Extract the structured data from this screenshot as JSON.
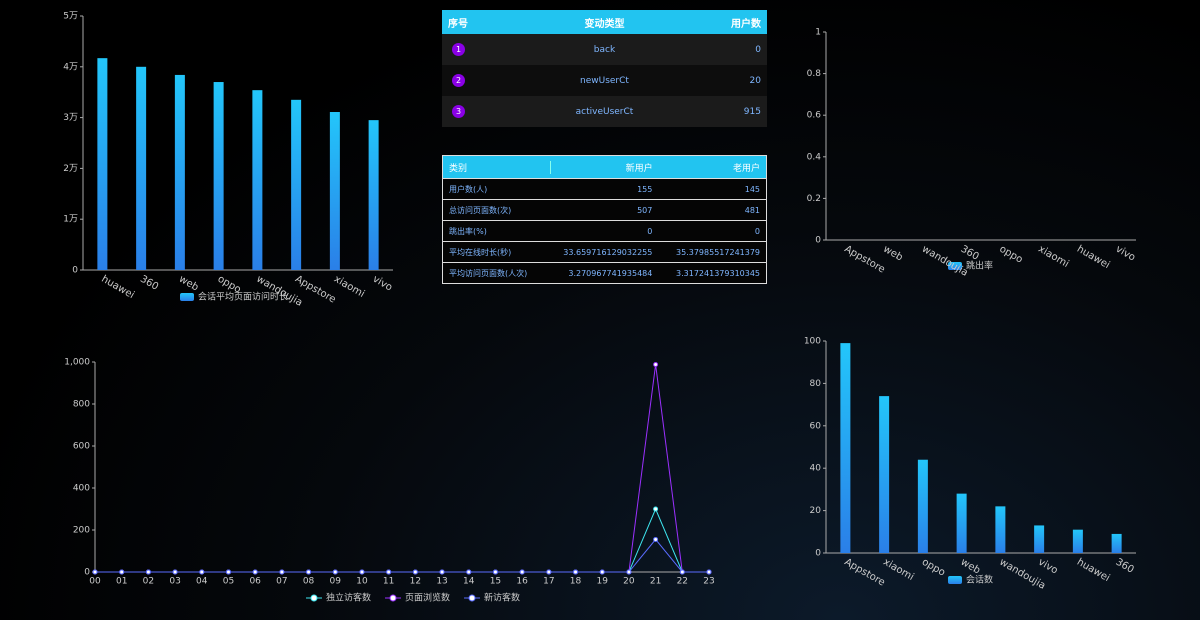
{
  "chart_data": [
    {
      "type": "bar",
      "categories": [
        "huawei",
        "360",
        "web",
        "oppo",
        "wandoujia",
        "Appstore",
        "xiaomi",
        "vivo"
      ],
      "series": [
        {
          "name": "会话平均页面访问时长",
          "color": [
            "#23c6fa",
            "#2a7fe8"
          ],
          "values": [
            41700,
            40000,
            38400,
            37000,
            35400,
            33500,
            31100,
            29500
          ]
        }
      ],
      "ylim": [
        0,
        50000
      ],
      "yticks": [
        0,
        {
          "value": 10000,
          "label": "1万"
        },
        {
          "value": 20000,
          "label": "2万"
        },
        {
          "value": 30000,
          "label": "3万"
        },
        {
          "value": 40000,
          "label": "4万"
        },
        {
          "value": 50000,
          "label": "5万"
        }
      ]
    },
    {
      "type": "bar",
      "categories": [
        "Appstore",
        "web",
        "wandoujia",
        "360",
        "oppo",
        "xiaomi",
        "huawei",
        "vivo"
      ],
      "series": [
        {
          "name": "跳出率",
          "color": [
            "#23c6fa",
            "#2a7fe8"
          ],
          "values": [
            0,
            0,
            0,
            0,
            0,
            0,
            0,
            0
          ]
        }
      ],
      "ylim": [
        0,
        1
      ],
      "yticks": [
        0,
        0.2,
        0.4,
        0.6,
        0.8,
        1
      ]
    },
    {
      "type": "bar",
      "categories": [
        "Appstore",
        "xiaomi",
        "oppo",
        "web",
        "wandoujia",
        "vivo",
        "huawei",
        "360"
      ],
      "series": [
        {
          "name": "会话数",
          "color": [
            "#23c6fa",
            "#2a7fe8"
          ],
          "values": [
            99,
            74,
            44,
            28,
            22,
            13,
            11,
            9
          ]
        }
      ],
      "ylim": [
        0,
        100
      ],
      "yticks": [
        0,
        20,
        40,
        60,
        80,
        100
      ]
    },
    {
      "type": "line",
      "categories": [
        "00",
        "01",
        "02",
        "03",
        "04",
        "05",
        "06",
        "07",
        "08",
        "09",
        "10",
        "11",
        "12",
        "13",
        "14",
        "15",
        "16",
        "17",
        "18",
        "19",
        "20",
        "21",
        "22",
        "23"
      ],
      "series": [
        {
          "name": "独立访客数",
          "color": "#3ee6f0",
          "values": [
            0,
            0,
            0,
            0,
            0,
            0,
            0,
            0,
            0,
            0,
            0,
            0,
            0,
            0,
            0,
            0,
            0,
            0,
            0,
            0,
            0,
            300,
            0,
            0
          ]
        },
        {
          "name": "页面浏览数",
          "color": "#9b30ff",
          "values": [
            0,
            0,
            0,
            0,
            0,
            0,
            0,
            0,
            0,
            0,
            0,
            0,
            0,
            0,
            0,
            0,
            0,
            0,
            0,
            0,
            0,
            988,
            0,
            0
          ]
        },
        {
          "name": "新访客数",
          "color": "#5a6cff",
          "values": [
            0,
            0,
            0,
            0,
            0,
            0,
            0,
            0,
            0,
            0,
            0,
            0,
            0,
            0,
            0,
            0,
            0,
            0,
            0,
            0,
            0,
            155,
            0,
            0
          ]
        }
      ],
      "ylim": [
        0,
        1000
      ],
      "yticks": [
        0,
        200,
        400,
        600,
        800,
        {
          "value": 1000,
          "label": "1,000"
        }
      ]
    }
  ],
  "change_table": {
    "header": [
      "序号",
      "变动类型",
      "用户数"
    ],
    "rows": [
      [
        "1",
        "back",
        "0"
      ],
      [
        "2",
        "newUserCt",
        "20"
      ],
      [
        "3",
        "activeUserCt",
        "915"
      ]
    ]
  },
  "user_table": {
    "header": [
      "类别",
      "新用户",
      "老用户"
    ],
    "rows": [
      [
        "用户数(人)",
        "155",
        "145"
      ],
      [
        "总访问页面数(次)",
        "507",
        "481"
      ],
      [
        "跳出率(%)",
        "0",
        "0"
      ],
      [
        "平均在线时长(秒)",
        "33.659716129032255",
        "35.37985517241379"
      ],
      [
        "平均访问页面数(人次)",
        "3.270967741935484",
        "3.317241379310345"
      ]
    ]
  }
}
